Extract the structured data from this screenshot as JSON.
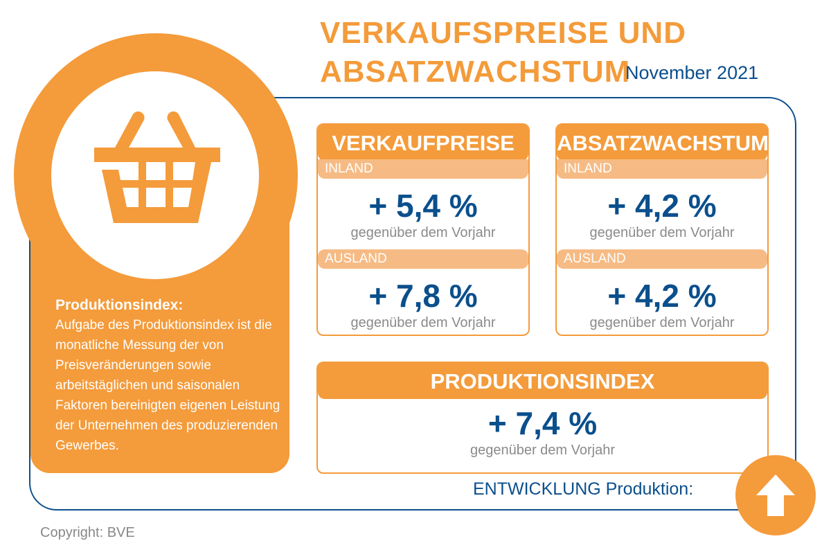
{
  "title": {
    "line1": "VERKAUFSPREISE UND",
    "line2": "ABSATZWACHSTUM",
    "date": "November 2021"
  },
  "info": {
    "heading": "Produktionsindex:",
    "text": "Aufgabe des Produktionsindex ist die monatliche Messung der von Preisveränderungen sowie arbeitstäglichen und saisonalen Faktoren bereinigten eigenen Leistung der Unternehmen des produzierenden Gewerbes."
  },
  "cards": [
    {
      "title": "VERKAUFPREISE",
      "rows": [
        {
          "label": "INLAND",
          "value": "+ 5,4 %",
          "note": "gegenüber dem Vorjahr"
        },
        {
          "label": "AUSLAND",
          "value": "+ 7,8 %",
          "note": "gegenüber dem Vorjahr"
        }
      ]
    },
    {
      "title": "ABSATZWACHSTUM",
      "rows": [
        {
          "label": "INLAND",
          "value": "+ 4,2 %",
          "note": "gegenüber dem Vorjahr"
        },
        {
          "label": "AUSLAND",
          "value": "+ 4,2 %",
          "note": "gegenüber dem Vorjahr"
        }
      ]
    }
  ],
  "production": {
    "title": "PRODUKTIONSINDEX",
    "value": "+ 7,4 %",
    "note": "gegenüber dem Vorjahr"
  },
  "development": {
    "label": "ENTWICKLUNG Produktion:",
    "direction": "up-arrow-icon"
  },
  "copyright": "Copyright: BVE",
  "colors": {
    "orange": "#F49B3B",
    "light_orange": "#F6BB84",
    "blue": "#0B4F8C",
    "gray": "#888888"
  }
}
